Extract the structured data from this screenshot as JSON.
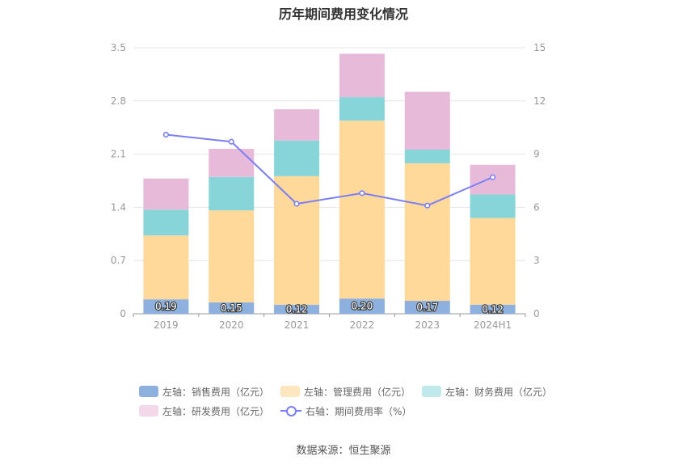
{
  "chart_data": {
    "type": "bar",
    "title": "历年期间费用变化情况",
    "categories": [
      "2019",
      "2020",
      "2021",
      "2022",
      "2023",
      "2024H1"
    ],
    "series": [
      {
        "name": "左轴：销售费用（亿元）",
        "axis": "left",
        "color": "#8eb0de",
        "values": [
          0.19,
          0.15,
          0.12,
          0.2,
          0.17,
          0.12
        ]
      },
      {
        "name": "左轴：管理费用（亿元）",
        "axis": "left",
        "color": "#ffd99a",
        "values": [
          0.84,
          1.21,
          1.69,
          2.34,
          1.81,
          1.14
        ]
      },
      {
        "name": "左轴：财务费用（亿元）",
        "axis": "left",
        "color": "#88d5d9",
        "values": [
          0.34,
          0.44,
          0.47,
          0.31,
          0.18,
          0.31
        ]
      },
      {
        "name": "左轴：研发费用（亿元）",
        "axis": "left",
        "color": "#e8bada",
        "values": [
          0.41,
          0.37,
          0.41,
          0.57,
          0.76,
          0.39
        ]
      },
      {
        "name": "右轴：期间费用率（%）",
        "axis": "right",
        "type": "line",
        "color": "#7b7ff5",
        "values": [
          10.1,
          9.7,
          6.2,
          6.8,
          6.1,
          7.7
        ]
      }
    ],
    "data_labels": [
      "0.19",
      "0.15",
      "0.12",
      "0.20",
      "0.17",
      "0.12"
    ],
    "y_left": {
      "min": 0,
      "max": 3.5,
      "ticks": [
        "0",
        "0.7",
        "1.4",
        "2.1",
        "2.8",
        "3.5"
      ]
    },
    "y_right": {
      "min": 0,
      "max": 15,
      "ticks": [
        "0",
        "3",
        "6",
        "9",
        "12",
        "15"
      ]
    },
    "grid": true,
    "legend_position": "bottom"
  },
  "legend_swatch_colors": {
    "sales": "#dde8f7",
    "admin": "#fff0d4",
    "finance": "#d3f0f1",
    "rnd": "#f6e3f0",
    "rate": "#7b7ff5"
  },
  "source": "数据来源：恒生聚源"
}
